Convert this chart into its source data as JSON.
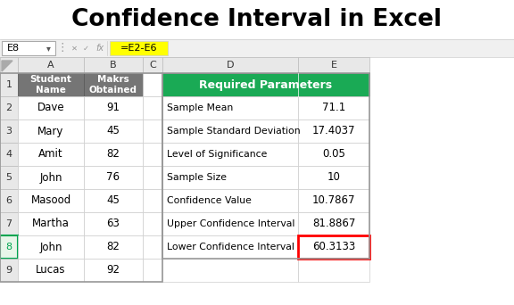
{
  "title": "Confidence Interval in Excel",
  "formula_bar_cell": "E8",
  "formula_bar_formula": "=E2-E6",
  "students": [
    "Dave",
    "Mary",
    "Amit",
    "John",
    "Masood",
    "Martha",
    "John",
    "Lucas"
  ],
  "marks": [
    91,
    45,
    82,
    76,
    45,
    63,
    82,
    92
  ],
  "header_left_col1": "Student\nName",
  "header_left_col2": "Makrs\nObtained",
  "right_header": "Required Parameters",
  "params": [
    "Sample Mean",
    "Sample Standard Deviation",
    "Level of Significance",
    "Sample Size",
    "Confidence Value",
    "Upper Confidence Interval",
    "Lower Confidence Interval"
  ],
  "values": [
    "71.1",
    "17.4037",
    "0.05",
    "10",
    "10.7867",
    "81.8867",
    "60.3133"
  ],
  "formula_bar_bg": "#ffff00",
  "header_left_bg": "#757575",
  "header_left_fg": "#ffffff",
  "right_header_bg": "#1aaa55",
  "right_header_fg": "#ffffff",
  "col_header_bg": "#e8e8e8",
  "selected_row_num_bg": "#e8f5e9",
  "selected_cell_border": "#00a550",
  "last_cell_border": "#ff0000",
  "grid_line": "#cccccc",
  "outer_border": "#999999"
}
